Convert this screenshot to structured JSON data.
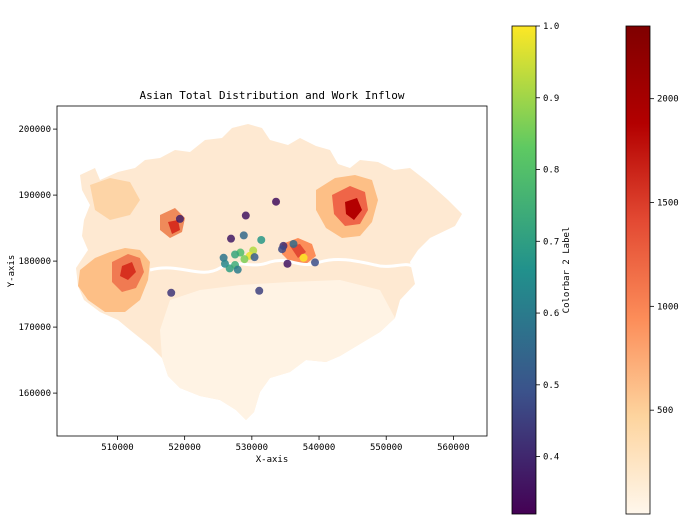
{
  "chart_data": {
    "type": "scatter",
    "title": "Asian Total Distribution and Work Inflow",
    "xlabel": "X-axis",
    "ylabel": "Y-axis",
    "xlim": [
      501000,
      565000
    ],
    "ylim": [
      153500,
      203500
    ],
    "xticks": [
      510000,
      520000,
      530000,
      540000,
      550000,
      560000
    ],
    "yticks": [
      160000,
      170000,
      180000,
      190000,
      200000
    ],
    "grid": false,
    "background_layer": {
      "type": "choropleth",
      "description_colormap": "OrRd",
      "colorbar_ticks": [
        500,
        1000,
        1500,
        2000
      ],
      "colorbar_range": [
        0,
        2350
      ]
    },
    "scatter_colormap": "viridis",
    "colorbar2": {
      "label": "Colorbar 2 Label",
      "ticks": [
        0.4,
        0.5,
        0.6,
        0.7,
        0.8,
        0.9,
        1.0
      ],
      "range": [
        0.32,
        1.0
      ]
    },
    "points": [
      {
        "x": 519300,
        "y": 186400,
        "v": 0.38
      },
      {
        "x": 518000,
        "y": 175200,
        "v": 0.43
      },
      {
        "x": 529100,
        "y": 186900,
        "v": 0.36
      },
      {
        "x": 533600,
        "y": 189000,
        "v": 0.35
      },
      {
        "x": 528800,
        "y": 183900,
        "v": 0.55
      },
      {
        "x": 526900,
        "y": 183400,
        "v": 0.37
      },
      {
        "x": 531400,
        "y": 183200,
        "v": 0.68
      },
      {
        "x": 530200,
        "y": 181600,
        "v": 0.92
      },
      {
        "x": 529700,
        "y": 180800,
        "v": 0.98
      },
      {
        "x": 528900,
        "y": 180300,
        "v": 0.86
      },
      {
        "x": 528300,
        "y": 181300,
        "v": 0.79
      },
      {
        "x": 527500,
        "y": 181000,
        "v": 0.72
      },
      {
        "x": 525800,
        "y": 180500,
        "v": 0.58
      },
      {
        "x": 526000,
        "y": 179600,
        "v": 0.63
      },
      {
        "x": 526700,
        "y": 178900,
        "v": 0.7
      },
      {
        "x": 527500,
        "y": 179400,
        "v": 0.74
      },
      {
        "x": 527900,
        "y": 178700,
        "v": 0.6
      },
      {
        "x": 530400,
        "y": 180600,
        "v": 0.52
      },
      {
        "x": 531100,
        "y": 175500,
        "v": 0.45
      },
      {
        "x": 534700,
        "y": 182300,
        "v": 0.41
      },
      {
        "x": 534500,
        "y": 181800,
        "v": 0.47
      },
      {
        "x": 536200,
        "y": 182600,
        "v": 0.56
      },
      {
        "x": 535300,
        "y": 179600,
        "v": 0.36
      },
      {
        "x": 537700,
        "y": 180500,
        "v": 1.0
      },
      {
        "x": 539400,
        "y": 179800,
        "v": 0.48
      }
    ]
  }
}
